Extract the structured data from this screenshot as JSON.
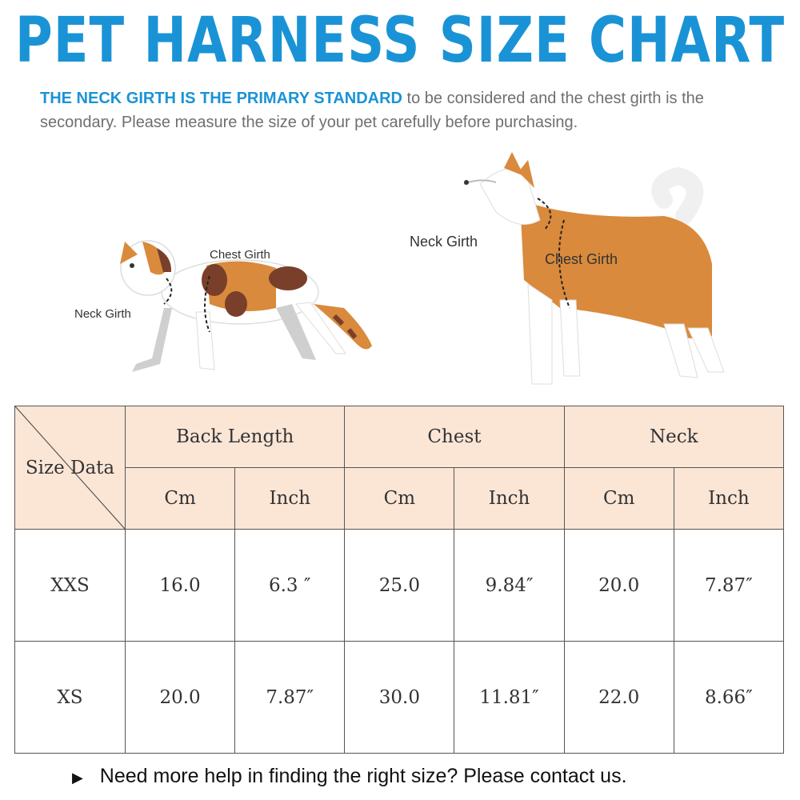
{
  "header": {
    "title": "PET HARNESS SIZE CHART",
    "note_highlight": "THE NECK GIRTH IS THE PRIMARY STANDARD",
    "note_rest": "to be considered and the chest girth is the secondary. Please measure the size of your pet carefully before purchasing."
  },
  "illustrations": {
    "cat": {
      "chest_label": "Chest Girth",
      "neck_label": "Neck  Girth"
    },
    "dog": {
      "neck_label": "Neck  Girth",
      "chest_label": "Chest Girth"
    }
  },
  "table": {
    "corner_label": "Size Data",
    "groups": [
      "Back Length",
      "Chest",
      "Neck"
    ],
    "units": [
      "Cm",
      "Inch",
      "Cm",
      "Inch",
      "Cm",
      "Inch"
    ],
    "rows": [
      {
        "size": "XXS",
        "values": [
          "16.0",
          "6.3 ″",
          "25.0",
          "9.84″",
          "20.0",
          "7.87″"
        ]
      },
      {
        "size": "XS",
        "values": [
          "20.0",
          "7.87″",
          "30.0",
          "11.81″",
          "22.0",
          "8.66″"
        ]
      }
    ]
  },
  "footer": {
    "arrow_icon": "play-arrow-icon",
    "text": "Need more help in finding the right size? Please contact us."
  },
  "colors": {
    "title_blue": "#1a93d6",
    "header_peach": "#fbe6d6",
    "fur_orange": "#d98a3c",
    "cat_dark": "#7a3f2a"
  }
}
